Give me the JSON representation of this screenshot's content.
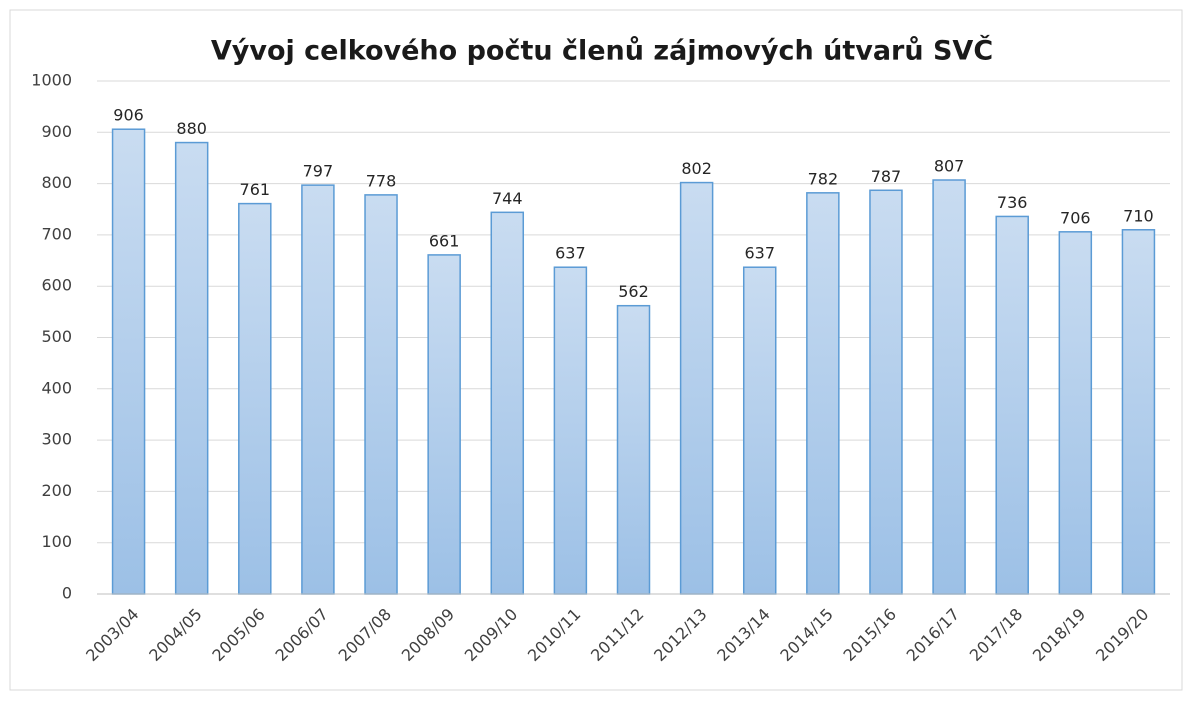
{
  "chart_data": {
    "type": "bar",
    "title": "Vývoj celkového počtu členů zájmových útvarů SVČ",
    "categories": [
      "2003/04",
      "2004/05",
      "2005/06",
      "2006/07",
      "2007/08",
      "2008/09",
      "2009/10",
      "2010/11",
      "2011/12",
      "2012/13",
      "2013/14",
      "2014/15",
      "2015/16",
      "2016/17",
      "2017/18",
      "2018/19",
      "2019/20"
    ],
    "values": [
      906,
      880,
      761,
      797,
      778,
      661,
      744,
      637,
      562,
      802,
      637,
      782,
      787,
      807,
      736,
      706,
      710
    ],
    "color": "#5b9bd5",
    "ylim": [
      0,
      1000
    ],
    "yticks": [
      0,
      100,
      200,
      300,
      400,
      500,
      600,
      700,
      800,
      900,
      1000
    ],
    "grid": true
  }
}
